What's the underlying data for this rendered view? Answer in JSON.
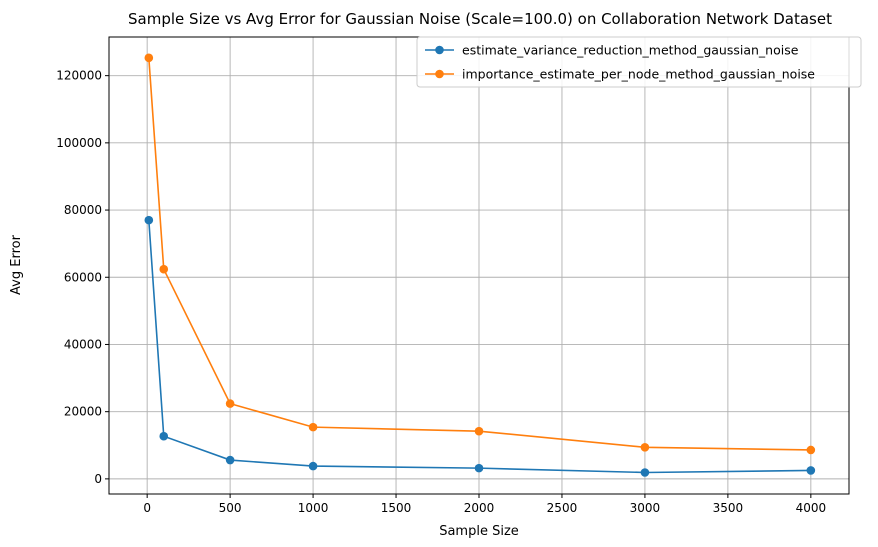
{
  "chart_data": {
    "type": "line",
    "title": "Sample Size vs Avg Error for Gaussian Noise (Scale=100.0) on Collaboration Network Dataset",
    "xlabel": "Sample Size",
    "ylabel": "Avg Error",
    "x": [
      10,
      100,
      500,
      1000,
      2000,
      3000,
      4000
    ],
    "xlim": [
      -230,
      4230
    ],
    "ylim": [
      -4500,
      131500
    ],
    "xticks": [
      0,
      500,
      1000,
      1500,
      2000,
      2500,
      3000,
      3500,
      4000
    ],
    "yticks": [
      0,
      20000,
      40000,
      60000,
      80000,
      100000,
      120000
    ],
    "grid": true,
    "legend_position": "upper-right",
    "series": [
      {
        "name": "estimate_variance_reduction_method_gaussian_noise",
        "color": "#1f77b4",
        "marker": "circle",
        "values": [
          77000,
          12700,
          5600,
          3800,
          3200,
          1900,
          2500
        ]
      },
      {
        "name": "importance_estimate_per_node_method_gaussian_noise",
        "color": "#ff7f0e",
        "marker": "circle",
        "values": [
          125300,
          62400,
          22400,
          15400,
          14200,
          9400,
          8600
        ]
      }
    ]
  }
}
